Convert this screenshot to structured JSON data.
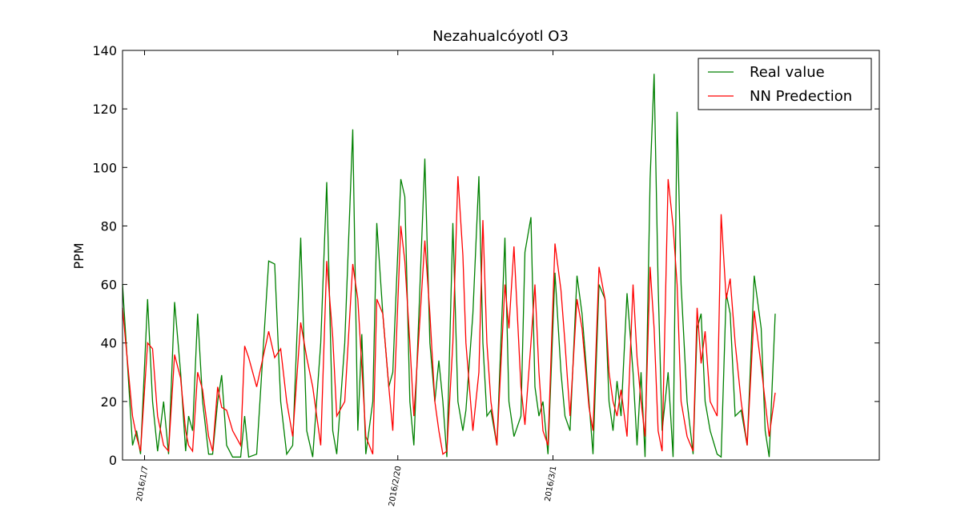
{
  "chart_data": {
    "type": "line",
    "title": "Nezahualcóyotl O3",
    "y_label": "PPM",
    "x": [
      0,
      10,
      14,
      18,
      25,
      30,
      35,
      41,
      46,
      52,
      58,
      63,
      66,
      70,
      75,
      80,
      86,
      90,
      95,
      99,
      104,
      110,
      118,
      122,
      126,
      134,
      146,
      152,
      158,
      164,
      170,
      178,
      184,
      190,
      198,
      204,
      210,
      214,
      222,
      230,
      235,
      239,
      243,
      250,
      254,
      260,
      266,
      270,
      278,
      282,
      287,
      291,
      302,
      307,
      312,
      316,
      320,
      324,
      330,
      335,
      340,
      343,
      350,
      356,
      360,
      364,
      368,
      374,
      382,
      386,
      391,
      398,
      402,
      408,
      412,
      416,
      420,
      425,
      432,
      438,
      442,
      447,
      454,
      459,
      466,
      470,
      476,
      482,
      486,
      490,
      494,
      498,
      504,
      510,
      514,
      518,
      522,
      527,
      531,
      535,
      539,
      545,
      550,
      554,
      558,
      564,
      570,
      574,
      578,
      582,
      587,
      594,
      598,
      603,
      607,
      612,
      618,
      624,
      631,
      638,
      642,
      646,
      652
    ],
    "series": [
      {
        "name": "Real value",
        "color": "#008000",
        "values": [
          60,
          5,
          10,
          2,
          55,
          20,
          3,
          20,
          2,
          54,
          30,
          3,
          15,
          10,
          50,
          20,
          2,
          2,
          20,
          29,
          5,
          1,
          1,
          15,
          1,
          2,
          68,
          67,
          20,
          2,
          5,
          76,
          10,
          1,
          40,
          95,
          10,
          2,
          40,
          113,
          10,
          43,
          2,
          20,
          81,
          50,
          25,
          30,
          96,
          90,
          20,
          5,
          103,
          40,
          20,
          34,
          20,
          1,
          81,
          20,
          10,
          17,
          50,
          97,
          40,
          15,
          17,
          5,
          76,
          20,
          8,
          15,
          71,
          83,
          25,
          15,
          20,
          2,
          64,
          30,
          15,
          10,
          63,
          50,
          20,
          2,
          60,
          55,
          20,
          10,
          27,
          15,
          57,
          30,
          5,
          30,
          1,
          96,
          132,
          60,
          10,
          30,
          1,
          119,
          60,
          20,
          2,
          45,
          50,
          20,
          10,
          2,
          1,
          57,
          50,
          15,
          17,
          5,
          63,
          45,
          10,
          1,
          50
        ]
      },
      {
        "name": "NN Predection",
        "color": "#ff0000",
        "values": [
          52,
          15,
          8,
          3,
          40,
          38,
          15,
          5,
          3,
          36,
          28,
          10,
          5,
          3,
          30,
          24,
          8,
          3,
          25,
          18,
          17,
          10,
          5,
          39,
          35,
          25,
          44,
          35,
          38,
          20,
          8,
          47,
          35,
          25,
          5,
          68,
          42,
          15,
          20,
          67,
          55,
          32,
          8,
          2,
          55,
          50,
          25,
          10,
          80,
          68,
          40,
          15,
          75,
          50,
          20,
          10,
          2,
          3,
          40,
          97,
          70,
          40,
          10,
          30,
          82,
          40,
          20,
          5,
          60,
          45,
          73,
          25,
          12,
          40,
          60,
          30,
          10,
          5,
          74,
          58,
          40,
          15,
          55,
          45,
          18,
          10,
          66,
          55,
          30,
          20,
          15,
          24,
          8,
          60,
          35,
          20,
          8,
          66,
          45,
          10,
          3,
          96,
          80,
          60,
          20,
          8,
          3,
          52,
          33,
          44,
          20,
          15,
          84,
          55,
          62,
          40,
          20,
          5,
          51,
          32,
          20,
          8,
          23
        ]
      }
    ],
    "xlim": [
      0,
      756
    ],
    "xticks": [
      {
        "value": 22,
        "label": "2016/1/7"
      },
      {
        "value": 275,
        "label": "2016/2/20"
      },
      {
        "value": 430,
        "label": "2016/3/1"
      }
    ],
    "ylim": [
      0,
      140
    ],
    "yticks": [
      0,
      20,
      40,
      60,
      80,
      100,
      120,
      140
    ],
    "legend": "upper right"
  }
}
